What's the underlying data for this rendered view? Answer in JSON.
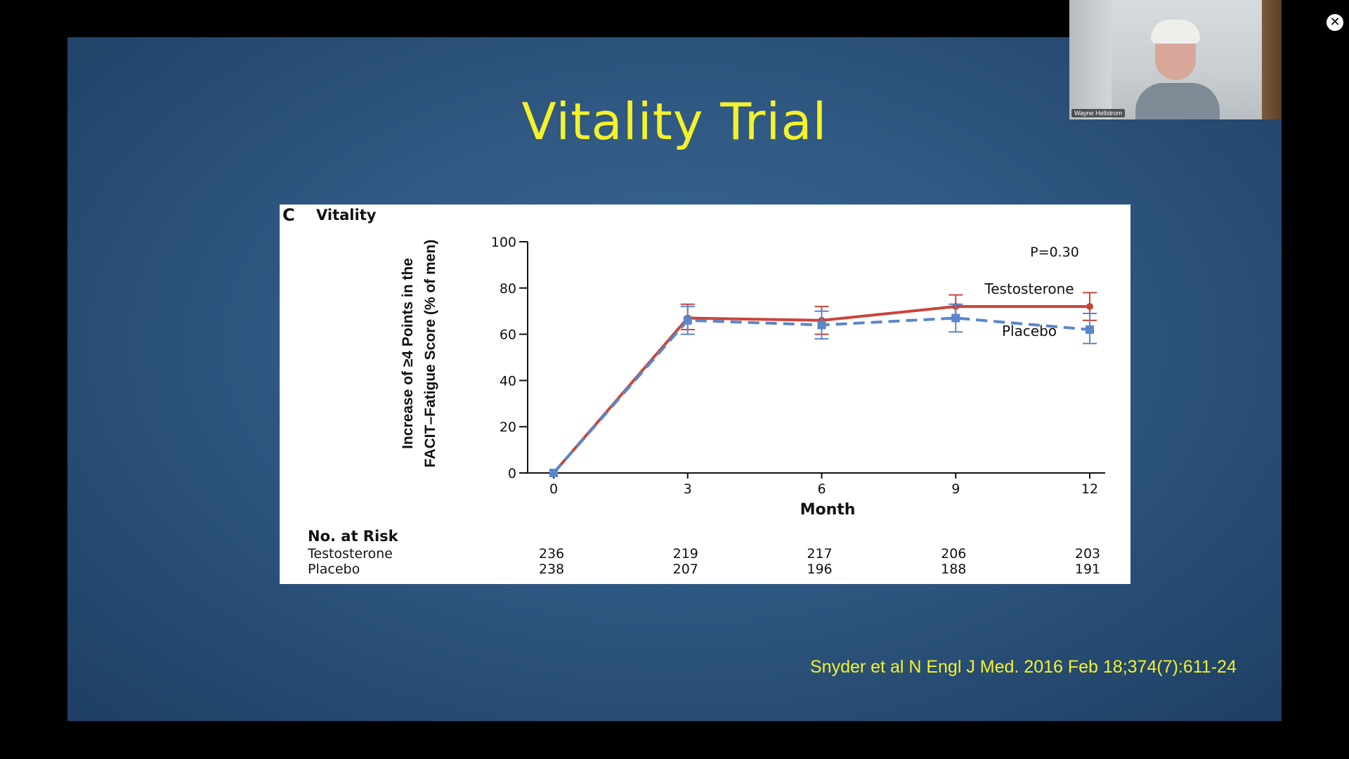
{
  "slide": {
    "title": "Vitality Trial",
    "citation": "Snyder et al N Engl J Med. 2016 Feb 18;374(7):611-24"
  },
  "video_tile": {
    "participant_name": "Wayne Hellstrom"
  },
  "close_icon": "close-icon",
  "chart_data": {
    "type": "line",
    "panel_letter": "C",
    "title": "Vitality",
    "xlabel": "Month",
    "ylabel": "Increase of ≥4 Points in the FACIT–Fatigue Score (% of men)",
    "ylabel_line1": "Increase of ≥4 Points in the",
    "ylabel_line2": "FACIT–Fatigue Score (% of men)",
    "annotation": "P=0.30",
    "x": [
      0,
      3,
      6,
      9,
      12
    ],
    "x_tick_labels": [
      "0",
      "3",
      "6",
      "9",
      "12"
    ],
    "y_ticks": [
      0,
      20,
      40,
      60,
      80,
      100
    ],
    "y_tick_labels": [
      "0",
      "20",
      "40",
      "60",
      "80",
      "100"
    ],
    "ylim": [
      0,
      100
    ],
    "xlim": [
      0,
      12
    ],
    "series": [
      {
        "name": "Testosterone",
        "color": "#c8453b",
        "style": "solid",
        "values": [
          0,
          67,
          66,
          72,
          72
        ],
        "error_low": [
          null,
          62,
          60,
          67,
          66
        ],
        "error_high": [
          null,
          73,
          72,
          77,
          78
        ]
      },
      {
        "name": "Placebo",
        "color": "#5b86c8",
        "style": "dashed",
        "values": [
          0,
          66,
          64,
          67,
          62
        ],
        "error_low": [
          null,
          60,
          58,
          61,
          56
        ],
        "error_high": [
          null,
          72,
          70,
          73,
          69
        ]
      }
    ],
    "risk_table": {
      "header": "No. at Risk",
      "rows": [
        {
          "label": "Testosterone",
          "values": [
            "236",
            "219",
            "217",
            "206",
            "203"
          ]
        },
        {
          "label": "Placebo",
          "values": [
            "238",
            "207",
            "196",
            "188",
            "191"
          ]
        }
      ]
    }
  }
}
